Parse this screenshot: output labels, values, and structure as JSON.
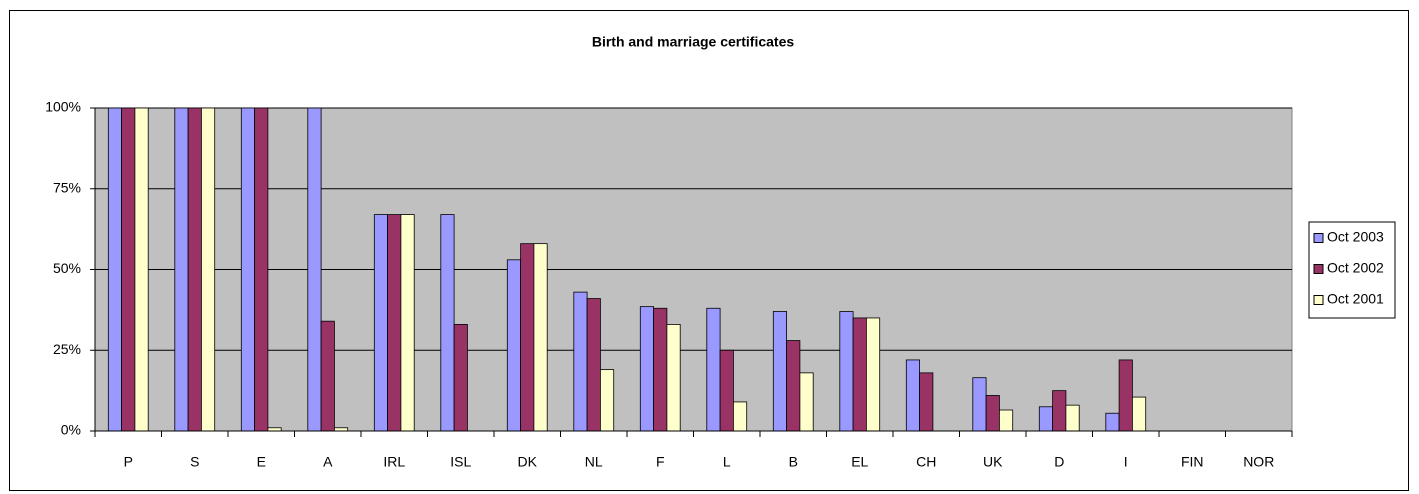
{
  "chart_data": {
    "type": "bar",
    "title": "Birth and marriage certificates",
    "categories": [
      "P",
      "S",
      "E",
      "A",
      "IRL",
      "ISL",
      "DK",
      "NL",
      "F",
      "L",
      "B",
      "EL",
      "CH",
      "UK",
      "D",
      "I",
      "FIN",
      "NOR"
    ],
    "series": [
      {
        "name": "Oct 2003",
        "color": "#9999ff",
        "values": [
          100,
          100,
          100,
          100,
          67,
          67,
          53,
          43,
          38.5,
          38,
          37,
          37,
          22,
          16.5,
          7.5,
          5.5,
          0,
          0
        ]
      },
      {
        "name": "Oct 2002",
        "color": "#993366",
        "values": [
          100,
          100,
          100,
          34,
          67,
          33,
          58,
          41,
          38,
          25,
          28,
          35,
          18,
          11,
          12.5,
          22,
          0,
          0
        ]
      },
      {
        "name": "Oct 2001",
        "color": "#ffffcc",
        "values": [
          100,
          100,
          1,
          1,
          67,
          0,
          58,
          19,
          33,
          9,
          18,
          35,
          0,
          6.5,
          8,
          10.5,
          0,
          0
        ]
      }
    ],
    "ylim": [
      0,
      100
    ],
    "yticks": [
      {
        "value": 0,
        "label": "0%"
      },
      {
        "value": 25,
        "label": "25%"
      },
      {
        "value": 50,
        "label": "50%"
      },
      {
        "value": 75,
        "label": "75%"
      },
      {
        "value": 100,
        "label": "100%"
      }
    ],
    "grid": true,
    "plot_background": "#c0c0c0",
    "legend_position": "right"
  }
}
